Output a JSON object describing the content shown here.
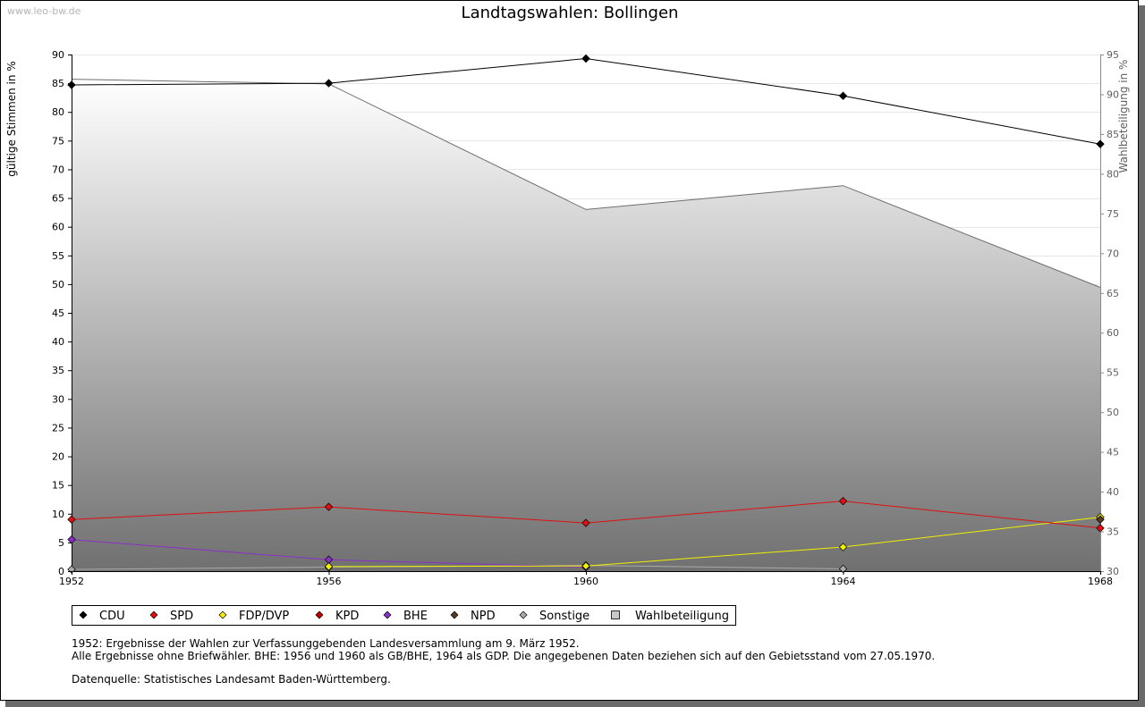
{
  "watermark": "www.leo-bw.de",
  "chart_data": {
    "type": "line",
    "title": "Landtagswahlen: Bollingen",
    "categories": [
      "1952",
      "1956",
      "1960",
      "1964",
      "1968"
    ],
    "ylabel": "gültige Stimmen in %",
    "y2label": "Wahlbeteiligung in %",
    "ylim": [
      0,
      90
    ],
    "y2lim": [
      30,
      95
    ],
    "yticks": [
      "0",
      "5",
      "10",
      "15",
      "20",
      "25",
      "30",
      "35",
      "40",
      "45",
      "50",
      "55",
      "60",
      "65",
      "70",
      "75",
      "80",
      "85",
      "90"
    ],
    "y2ticks": [
      "30",
      "35",
      "40",
      "45",
      "50",
      "55",
      "60",
      "65",
      "70",
      "75",
      "80",
      "85",
      "90",
      "95"
    ],
    "grid": true,
    "series": [
      {
        "name": "CDU",
        "color": "#000000",
        "values": [
          84.7,
          85.0,
          89.3,
          82.8,
          74.4
        ]
      },
      {
        "name": "SPD",
        "color": "#e01010",
        "values": [
          9.0,
          11.2,
          8.4,
          12.2,
          7.5
        ]
      },
      {
        "name": "FDP/DVP",
        "color": "#f0f000",
        "values": [
          null,
          0.8,
          0.9,
          4.2,
          9.4
        ]
      },
      {
        "name": "KPD",
        "color": "#c00000",
        "values": [
          null,
          null,
          null,
          null,
          null
        ]
      },
      {
        "name": "BHE",
        "color": "#8a30c8",
        "values": [
          5.5,
          2.0,
          0.7,
          null,
          null
        ]
      },
      {
        "name": "NPD",
        "color": "#5a3a20",
        "values": [
          null,
          null,
          null,
          null,
          9.0
        ]
      },
      {
        "name": "Sonstige",
        "color": "#aaaaaa",
        "values": [
          0.3,
          0.7,
          1.0,
          0.4,
          null
        ]
      }
    ],
    "turnout": {
      "name": "Wahlbeteiligung",
      "values": [
        91.9,
        91.3,
        75.5,
        78.5,
        65.7
      ]
    }
  },
  "notes": {
    "line1": "1952: Ergebnisse der Wahlen zur Verfassunggebenden Landesversammlung am 9. März 1952.",
    "line2": "Alle Ergebnisse ohne Briefwähler. BHE: 1956 und 1960 als GB/BHE, 1964 als GDP. Die angegebenen Daten beziehen sich auf den Gebietsstand vom 27.05.1970.",
    "line3": "Datenquelle: Statistisches Landesamt Baden-Württemberg."
  }
}
